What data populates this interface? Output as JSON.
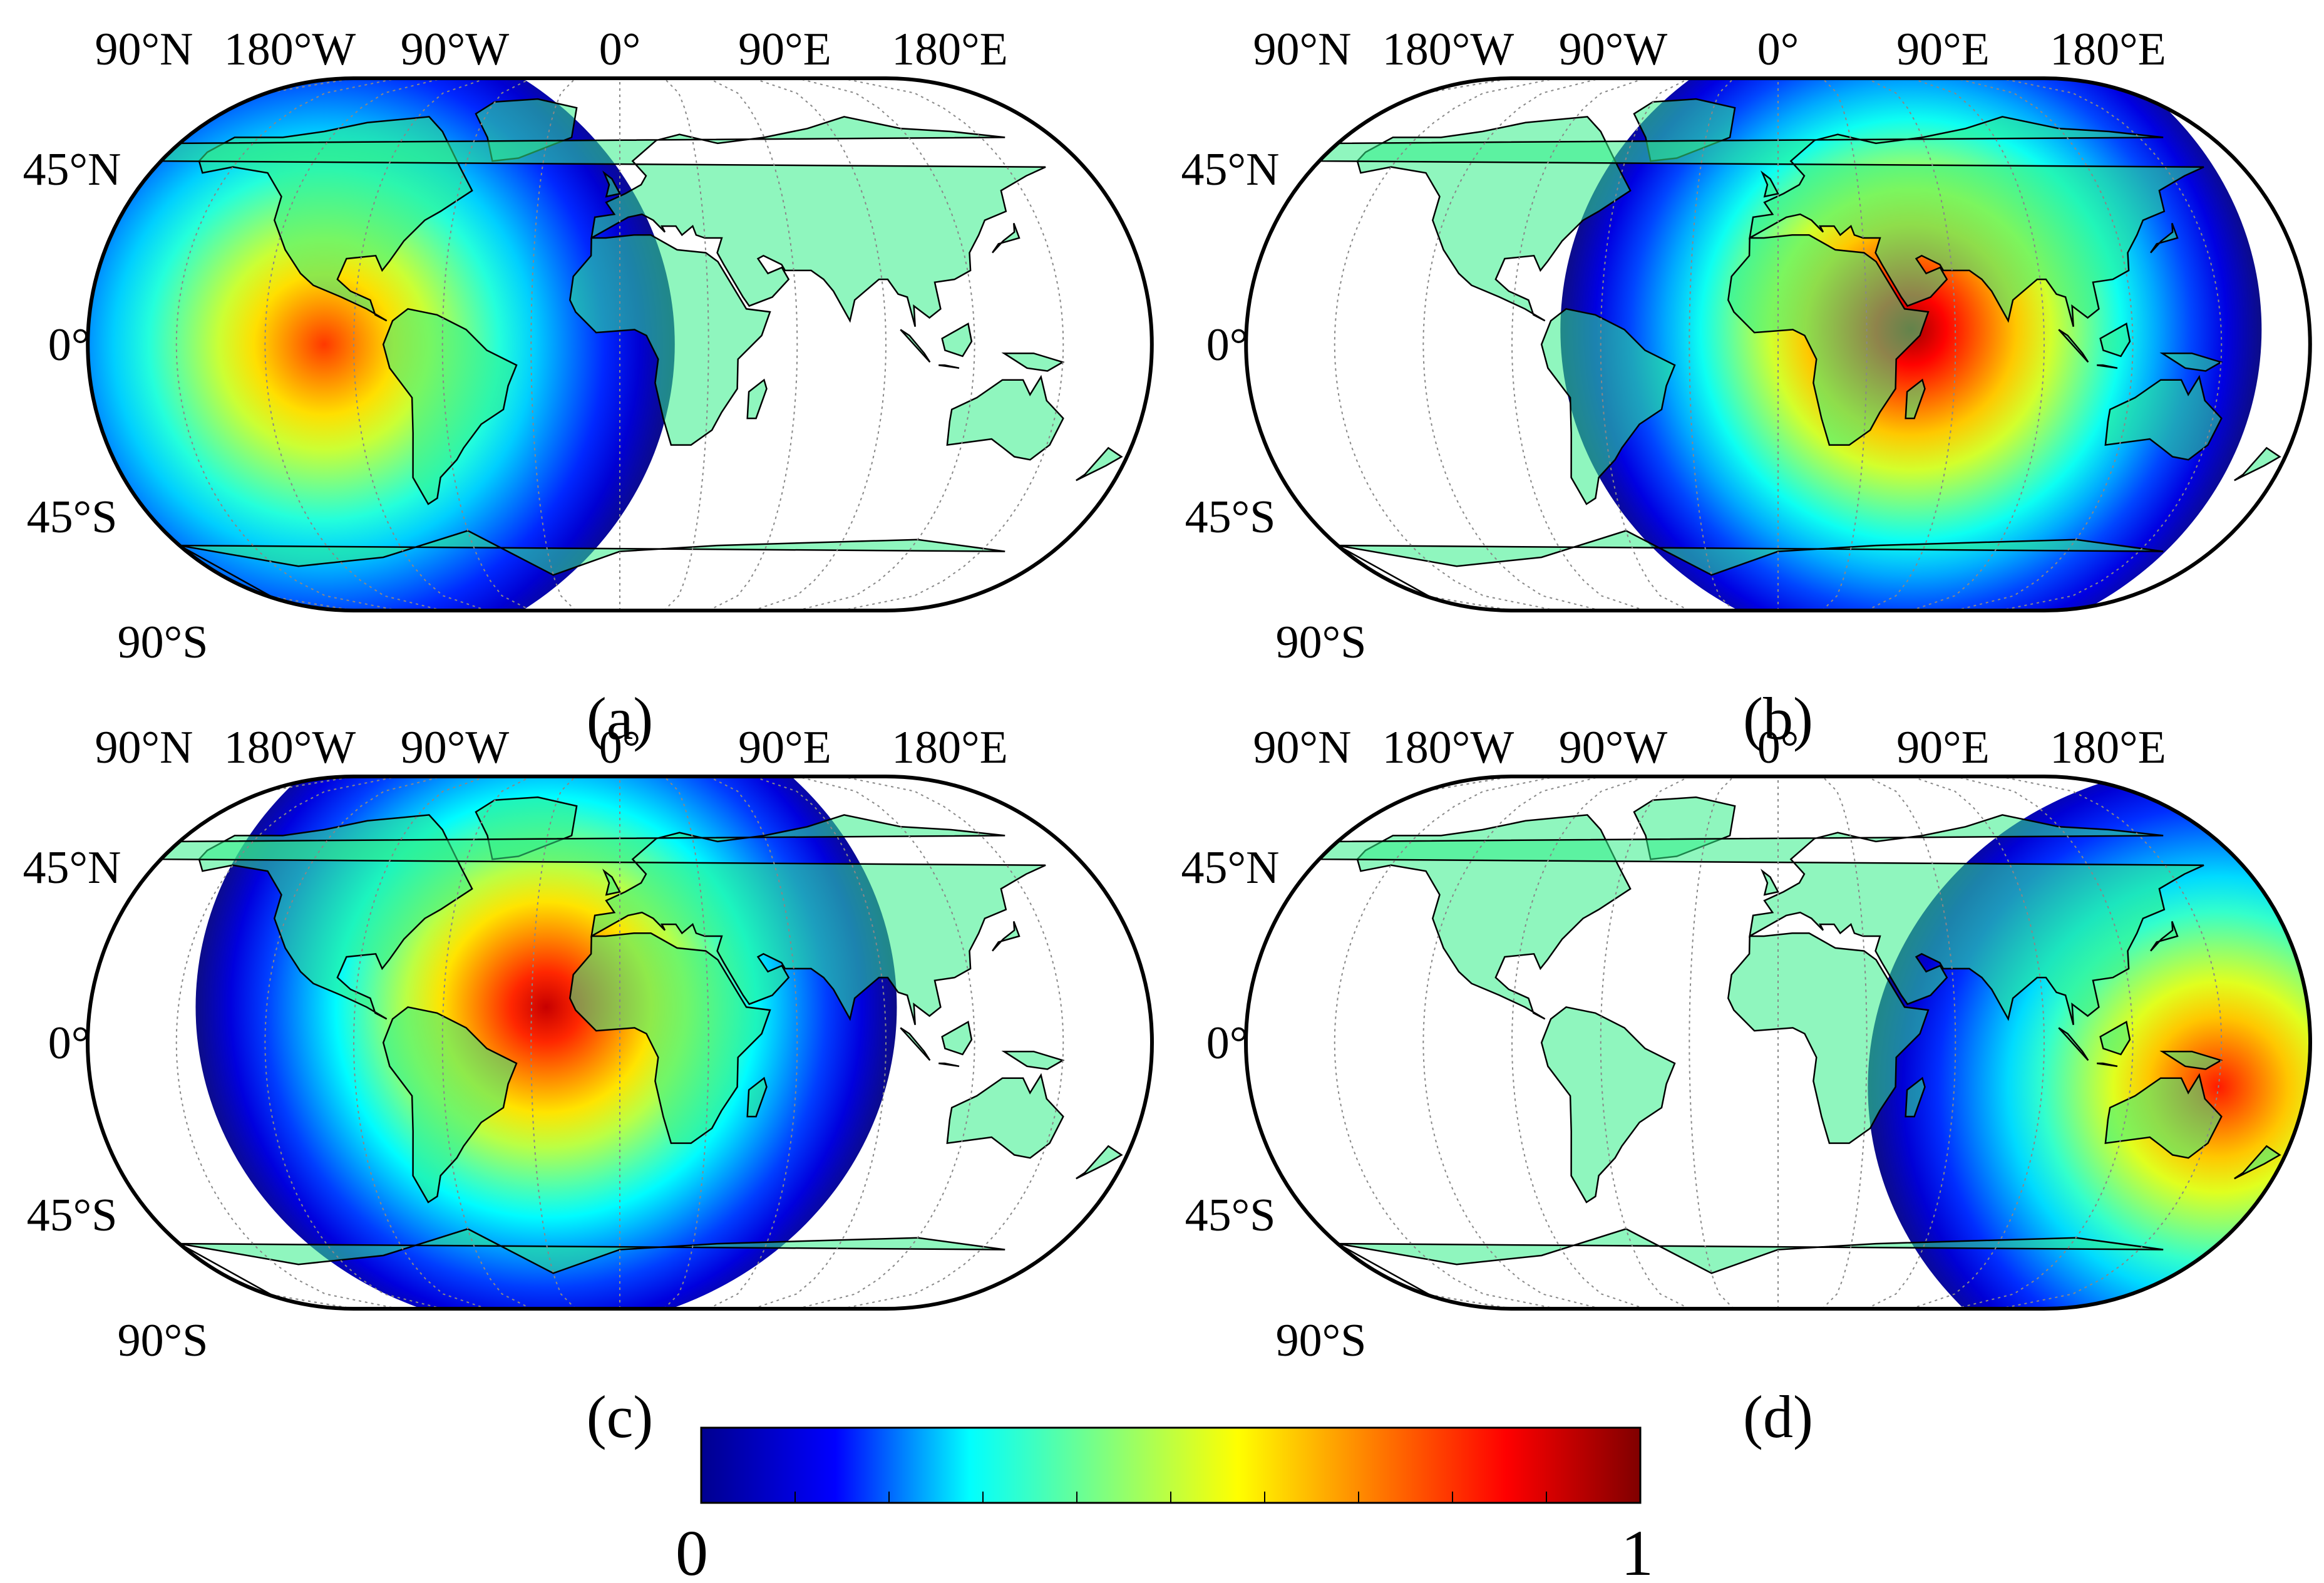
{
  "panels": [
    {
      "id": "a",
      "label": "(a)",
      "center_lon_deg": -100,
      "center_lat_deg": 0,
      "peak_value": 0.82
    },
    {
      "id": "b",
      "label": "(b)",
      "center_lon_deg": 45,
      "center_lat_deg": 5,
      "peak_value": 0.97
    },
    {
      "id": "c",
      "label": "(c)",
      "center_lon_deg": -25,
      "center_lat_deg": 12,
      "peak_value": 0.93
    },
    {
      "id": "d",
      "label": "(d)",
      "center_lon_deg": 150,
      "center_lat_deg": -15,
      "peak_value": 0.85
    }
  ],
  "axis_labels": {
    "longitude": [
      "180°W",
      "90°W",
      "0°",
      "90°E",
      "180°E"
    ],
    "latitude": [
      "90°N",
      "45°N",
      "0°",
      "45°S",
      "90°S"
    ]
  },
  "colorbar": {
    "min_label": "0",
    "max_label": "1",
    "range": [
      0,
      1
    ],
    "colormap": "jet",
    "stops": [
      "#00008F",
      "#0000FF",
      "#00FFFF",
      "#7FFF7F",
      "#FFFF00",
      "#FF7F00",
      "#FF0000",
      "#800000"
    ]
  },
  "colors": {
    "land": "#33EE88",
    "ocean": "#FFFFFF",
    "coast": "#000000",
    "graticule": "#888888"
  },
  "icons": [
    "land-mass",
    "graticule",
    "colorbar"
  ]
}
